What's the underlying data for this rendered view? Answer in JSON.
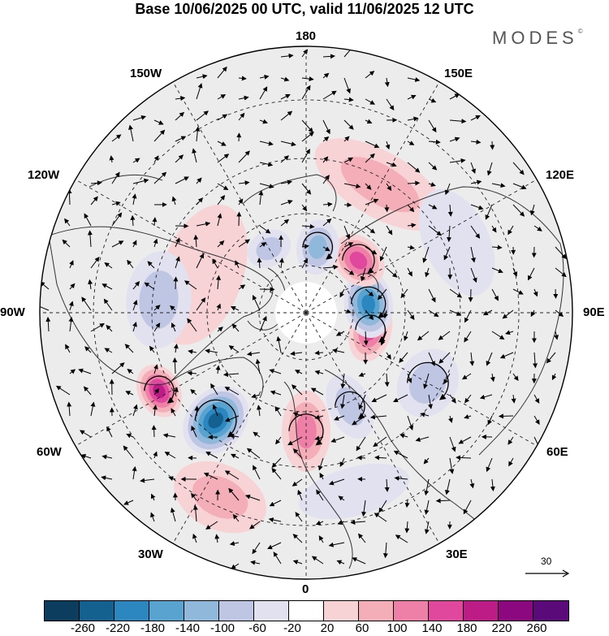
{
  "title": "Base 10/06/2025 00 UTC, valid 11/06/2025 12 UTC",
  "brand": "MODES",
  "brand_mark": "©",
  "longitude_labels": {
    "lon_180": "180",
    "lon_150e": "150E",
    "lon_120e": "120E",
    "lon_90e": "90E",
    "lon_60e": "60E",
    "lon_30e": "30E",
    "lon_0": "0",
    "lon_30w": "30W",
    "lon_60w": "60W",
    "lon_90w": "90W",
    "lon_120w": "120W",
    "lon_150w": "150W"
  },
  "reference_vector": {
    "value": "30"
  },
  "colorbar": {
    "colors": [
      "#0c3d5e",
      "#14608f",
      "#2c86c0",
      "#58a3cf",
      "#8fb8db",
      "#bfc6e3",
      "#e2e1f0",
      "#ffffff",
      "#f7d3d6",
      "#f3aeb8",
      "#ee7fa7",
      "#e0489d",
      "#bd1b86",
      "#8b087f",
      "#5b0a7a"
    ],
    "ticks": [
      "-260",
      "-220",
      "-180",
      "-140",
      "-100",
      "-60",
      "-20",
      "20",
      "60",
      "100",
      "140",
      "180",
      "220",
      "260"
    ]
  },
  "anomaly_blobs": [
    {
      "lon": -62,
      "lat": 45,
      "value": 180,
      "rx": 34,
      "ry": 26
    },
    {
      "lon": -40,
      "lat": 52,
      "value": -220,
      "rx": 36,
      "ry": 46
    },
    {
      "lon": 0,
      "lat": 58,
      "value": 100,
      "rx": 30,
      "ry": 50
    },
    {
      "lon": 25,
      "lat": 62,
      "value": -60,
      "rx": 26,
      "ry": 42
    },
    {
      "lon": 75,
      "lat": 72,
      "value": 140,
      "rx": 40,
      "ry": 26
    },
    {
      "lon": 98,
      "lat": 73,
      "value": -180,
      "rx": 42,
      "ry": 30
    },
    {
      "lon": 135,
      "lat": 70,
      "value": 140,
      "rx": 36,
      "ry": 28
    },
    {
      "lon": 170,
      "lat": 72,
      "value": -100,
      "rx": 26,
      "ry": 34
    },
    {
      "lon": 60,
      "lat": 52,
      "value": -60,
      "rx": 44,
      "ry": 36
    },
    {
      "lon": -150,
      "lat": 70,
      "value": -60,
      "rx": 28,
      "ry": 22
    },
    {
      "lon": -110,
      "lat": 60,
      "value": 20,
      "rx": 90,
      "ry": 50
    },
    {
      "lon": -95,
      "lat": 50,
      "value": -60,
      "rx": 60,
      "ry": 40
    },
    {
      "lon": 150,
      "lat": 50,
      "value": 60,
      "rx": 90,
      "ry": 40
    },
    {
      "lon": 115,
      "lat": 45,
      "value": -20,
      "rx": 70,
      "ry": 40
    },
    {
      "lon": 15,
      "lat": 40,
      "value": -20,
      "rx": 70,
      "ry": 30
    },
    {
      "lon": -25,
      "lat": 35,
      "value": 60,
      "rx": 60,
      "ry": 40
    }
  ]
}
